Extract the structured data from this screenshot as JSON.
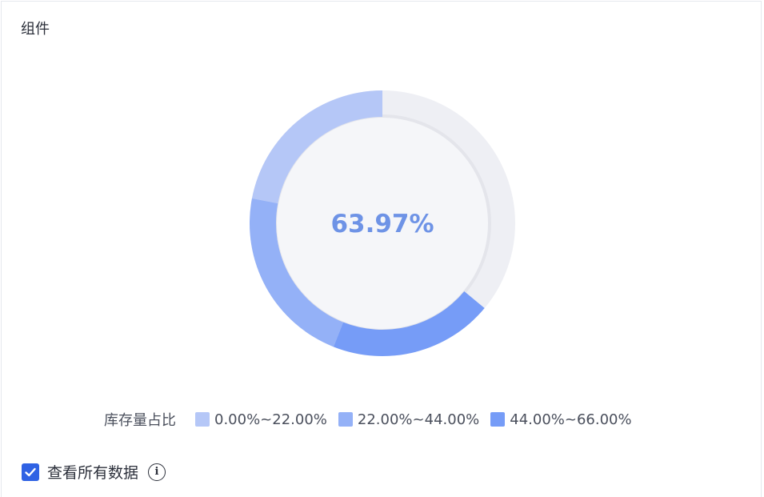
{
  "panel": {
    "title": "组件"
  },
  "chart_data": {
    "type": "pie",
    "center_label": "63.97%",
    "value": 63.97,
    "max": 100,
    "legend_title": "库存量占比",
    "bands": [
      {
        "name": "0.00%~22.00%",
        "from": 0,
        "to": 22,
        "color": "#b5c7f7"
      },
      {
        "name": "22.00%~44.00%",
        "from": 22,
        "to": 44,
        "color": "#94b1f7"
      },
      {
        "name": "44.00%~66.00%",
        "from": 44,
        "to": 66,
        "color": "#769cf7"
      }
    ],
    "remainder_color": "#eeeff4",
    "inner_fill": "#f5f6f9",
    "center_text_color": "#6e93e6"
  },
  "footer": {
    "checkbox_label": "查看所有数据",
    "checked": true
  }
}
